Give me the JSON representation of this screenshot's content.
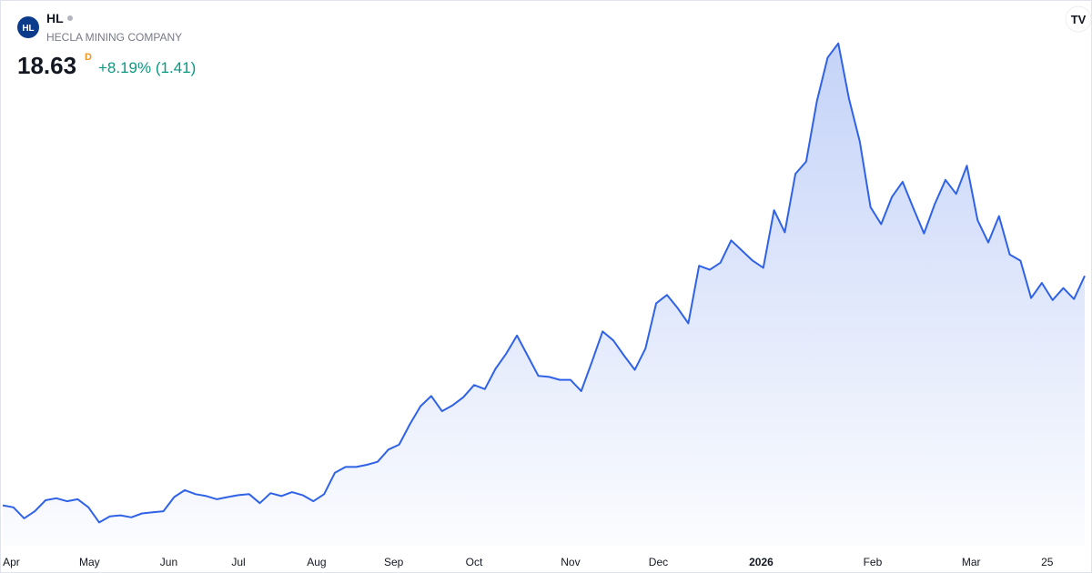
{
  "header": {
    "logo": "HL",
    "ticker": "HL",
    "company": "HECLA MINING COMPANY",
    "price": "18.63",
    "interval": "D",
    "change": "+8.19% (1.41)"
  },
  "chart_data": {
    "type": "area",
    "color": "#2f62e6",
    "values": [
      4.71,
      4.59,
      3.92,
      4.35,
      5.02,
      5.14,
      4.96,
      5.08,
      4.59,
      3.67,
      4.04,
      4.1,
      3.98,
      4.22,
      4.29,
      4.35,
      5.21,
      5.63,
      5.39,
      5.27,
      5.08,
      5.21,
      5.33,
      5.39,
      4.84,
      5.45,
      5.27,
      5.51,
      5.33,
      4.96,
      5.39,
      6.68,
      7.04,
      7.04,
      7.17,
      7.35,
      8.09,
      8.39,
      9.62,
      10.72,
      11.34,
      10.42,
      10.78,
      11.27,
      12.01,
      11.76,
      12.99,
      13.91,
      15.01,
      13.79,
      12.56,
      12.5,
      12.32,
      12.32,
      11.64,
      13.42,
      15.26,
      14.71,
      13.79,
      12.93,
      14.22,
      16.97,
      17.47,
      16.67,
      15.75,
      19.24,
      19.0,
      19.43,
      20.78,
      20.16,
      19.55,
      19.12,
      22.61,
      21.27,
      24.82,
      25.56,
      29.23,
      31.87,
      32.73,
      29.36,
      26.78,
      22.8,
      21.76,
      23.41,
      24.33,
      22.74,
      21.2,
      22.98,
      24.45,
      23.6,
      25.31,
      22.0,
      20.65,
      22.25,
      19.92,
      19.55,
      17.28,
      18.2,
      17.16,
      17.89,
      17.22,
      18.63
    ],
    "ylim": [
      2.26,
      35.36
    ],
    "xlim": [
      0,
      101
    ],
    "xticks": [
      {
        "value": 0.8,
        "label": "Apr"
      },
      {
        "value": 8.1,
        "label": "May"
      },
      {
        "value": 15.5,
        "label": "Jun"
      },
      {
        "value": 22,
        "label": "Jul"
      },
      {
        "value": 29.3,
        "label": "Aug"
      },
      {
        "value": 36.5,
        "label": "Sep"
      },
      {
        "value": 44,
        "label": "Oct"
      },
      {
        "value": 53,
        "label": "Nov"
      },
      {
        "value": 61.2,
        "label": "Dec"
      },
      {
        "value": 70.8,
        "label": "2026",
        "bold": true
      },
      {
        "value": 81.2,
        "label": "Feb"
      },
      {
        "value": 90.4,
        "label": "Mar"
      },
      {
        "value": 97.5,
        "label": "25"
      }
    ]
  }
}
